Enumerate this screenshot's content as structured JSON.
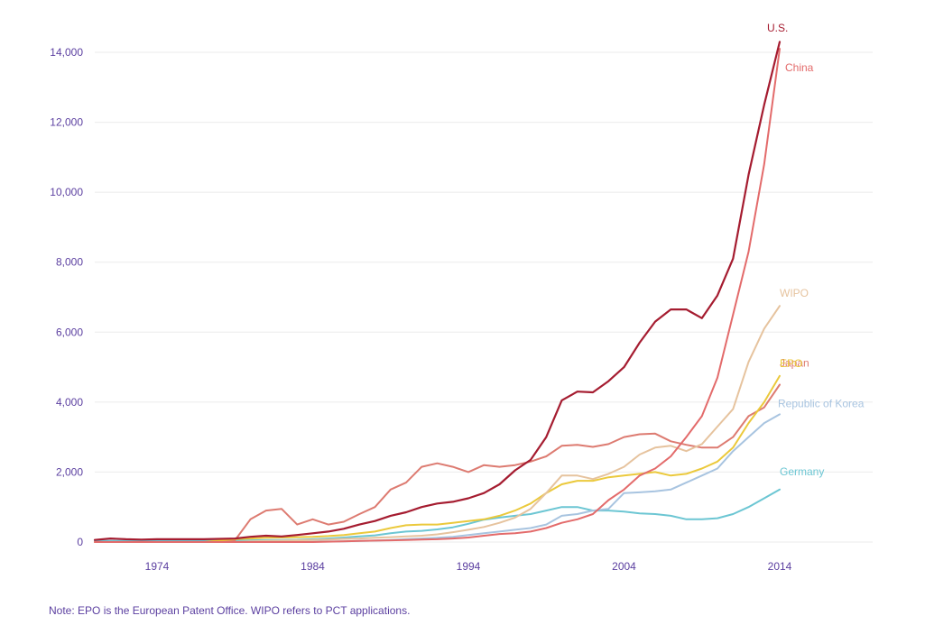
{
  "note": "Note: EPO is the European Patent Office. WIPO refers to PCT applications.",
  "colors": {
    "axis_text": "#5b3fa0",
    "grid": "#ebebeb",
    "US": "#a51c30",
    "China": "#e36b6b",
    "WIPO": "#e6c39e",
    "EPO": "#ebc93c",
    "Japan": "#dd7b71",
    "Korea": "#a8c4e0",
    "Germany": "#6cc6d3"
  },
  "chart_data": {
    "type": "line",
    "title": "",
    "xlabel": "",
    "ylabel": "",
    "xlim": [
      1970,
      2020
    ],
    "ylim": [
      0,
      14500
    ],
    "grid": true,
    "legend": "direct labels at line ends",
    "x_ticks": [
      {
        "value": 1974,
        "label": "1974"
      },
      {
        "value": 1984,
        "label": "1984"
      },
      {
        "value": 1994,
        "label": "1994"
      },
      {
        "value": 2004,
        "label": "2004"
      },
      {
        "value": 2014,
        "label": "2014"
      }
    ],
    "y_ticks": [
      {
        "value": 0,
        "label": "0"
      },
      {
        "value": 2000,
        "label": "2,000"
      },
      {
        "value": 4000,
        "label": "4,000"
      },
      {
        "value": 6000,
        "label": "6,000"
      },
      {
        "value": 8000,
        "label": "8,000"
      },
      {
        "value": 10000,
        "label": "10,000"
      },
      {
        "value": 12000,
        "label": "12,000"
      },
      {
        "value": 14000,
        "label": "14,000"
      }
    ],
    "x": [
      1970,
      1971,
      1972,
      1973,
      1974,
      1975,
      1976,
      1977,
      1978,
      1979,
      1980,
      1981,
      1982,
      1983,
      1984,
      1985,
      1986,
      1987,
      1988,
      1989,
      1990,
      1991,
      1992,
      1993,
      1994,
      1995,
      1996,
      1997,
      1998,
      1999,
      2000,
      2001,
      2002,
      2003,
      2004,
      2005,
      2006,
      2007,
      2008,
      2009,
      2010,
      2011,
      2012,
      2013,
      2014
    ],
    "series": [
      {
        "name": "Germany",
        "color_key": "Germany",
        "values": [
          30,
          30,
          30,
          30,
          30,
          30,
          30,
          35,
          40,
          45,
          50,
          55,
          60,
          65,
          80,
          100,
          130,
          160,
          190,
          250,
          300,
          320,
          360,
          420,
          520,
          640,
          700,
          750,
          800,
          900,
          1000,
          1000,
          900,
          900,
          870,
          820,
          800,
          750,
          650,
          650,
          680,
          800,
          1000,
          1250,
          1500
        ]
      },
      {
        "name": "Republic of Korea",
        "color_key": "Korea",
        "values": [
          0,
          0,
          0,
          0,
          0,
          0,
          0,
          0,
          0,
          0,
          5,
          5,
          5,
          10,
          10,
          15,
          20,
          30,
          40,
          60,
          80,
          100,
          120,
          150,
          200,
          250,
          300,
          350,
          400,
          500,
          750,
          800,
          900,
          950,
          1400,
          1420,
          1450,
          1500,
          1700,
          1900,
          2100,
          2600,
          3000,
          3400,
          3650
        ]
      },
      {
        "name": "Japan",
        "color_key": "Japan",
        "values": [
          0,
          0,
          0,
          0,
          0,
          0,
          0,
          0,
          0,
          50,
          650,
          900,
          950,
          500,
          650,
          500,
          580,
          800,
          1000,
          1500,
          1700,
          2150,
          2250,
          2150,
          2000,
          2200,
          2150,
          2200,
          2300,
          2450,
          2750,
          2780,
          2720,
          2800,
          3000,
          3080,
          3100,
          2880,
          2780,
          2700,
          2700,
          3000,
          3600,
          3850,
          4500
        ]
      },
      {
        "name": "EPO",
        "color_key": "EPO",
        "values": [
          0,
          0,
          0,
          0,
          0,
          0,
          0,
          0,
          40,
          80,
          100,
          120,
          130,
          140,
          150,
          170,
          200,
          250,
          300,
          400,
          480,
          500,
          500,
          550,
          600,
          650,
          750,
          900,
          1100,
          1400,
          1650,
          1750,
          1750,
          1850,
          1900,
          1950,
          2000,
          1900,
          1950,
          2100,
          2300,
          2700,
          3400,
          4000,
          4750
        ]
      },
      {
        "name": "WIPO",
        "color_key": "WIPO",
        "values": [
          0,
          0,
          0,
          0,
          0,
          0,
          0,
          0,
          0,
          0,
          20,
          30,
          40,
          50,
          60,
          70,
          90,
          100,
          120,
          140,
          160,
          180,
          220,
          280,
          350,
          430,
          550,
          700,
          950,
          1400,
          1900,
          1900,
          1800,
          1950,
          2150,
          2500,
          2700,
          2750,
          2600,
          2800,
          3300,
          3800,
          5150,
          6100,
          6750
        ]
      },
      {
        "name": "China",
        "color_key": "China",
        "values": [
          0,
          0,
          0,
          0,
          0,
          0,
          0,
          0,
          0,
          0,
          0,
          0,
          0,
          0,
          0,
          10,
          20,
          30,
          40,
          50,
          60,
          70,
          80,
          100,
          130,
          180,
          230,
          250,
          300,
          400,
          550,
          650,
          800,
          1200,
          1500,
          1900,
          2100,
          2450,
          3000,
          3600,
          4700,
          6500,
          8300,
          10800,
          14100
        ]
      },
      {
        "name": "U.S.",
        "color_key": "US",
        "values": [
          60,
          100,
          80,
          70,
          80,
          80,
          80,
          80,
          90,
          100,
          150,
          180,
          160,
          200,
          250,
          300,
          380,
          500,
          600,
          750,
          850,
          1000,
          1100,
          1150,
          1250,
          1400,
          1650,
          2050,
          2350,
          3000,
          4050,
          4300,
          4280,
          4600,
          5000,
          5700,
          6300,
          6650,
          6650,
          6400,
          7050,
          8100,
          10500,
          12500,
          14300
        ]
      }
    ]
  }
}
